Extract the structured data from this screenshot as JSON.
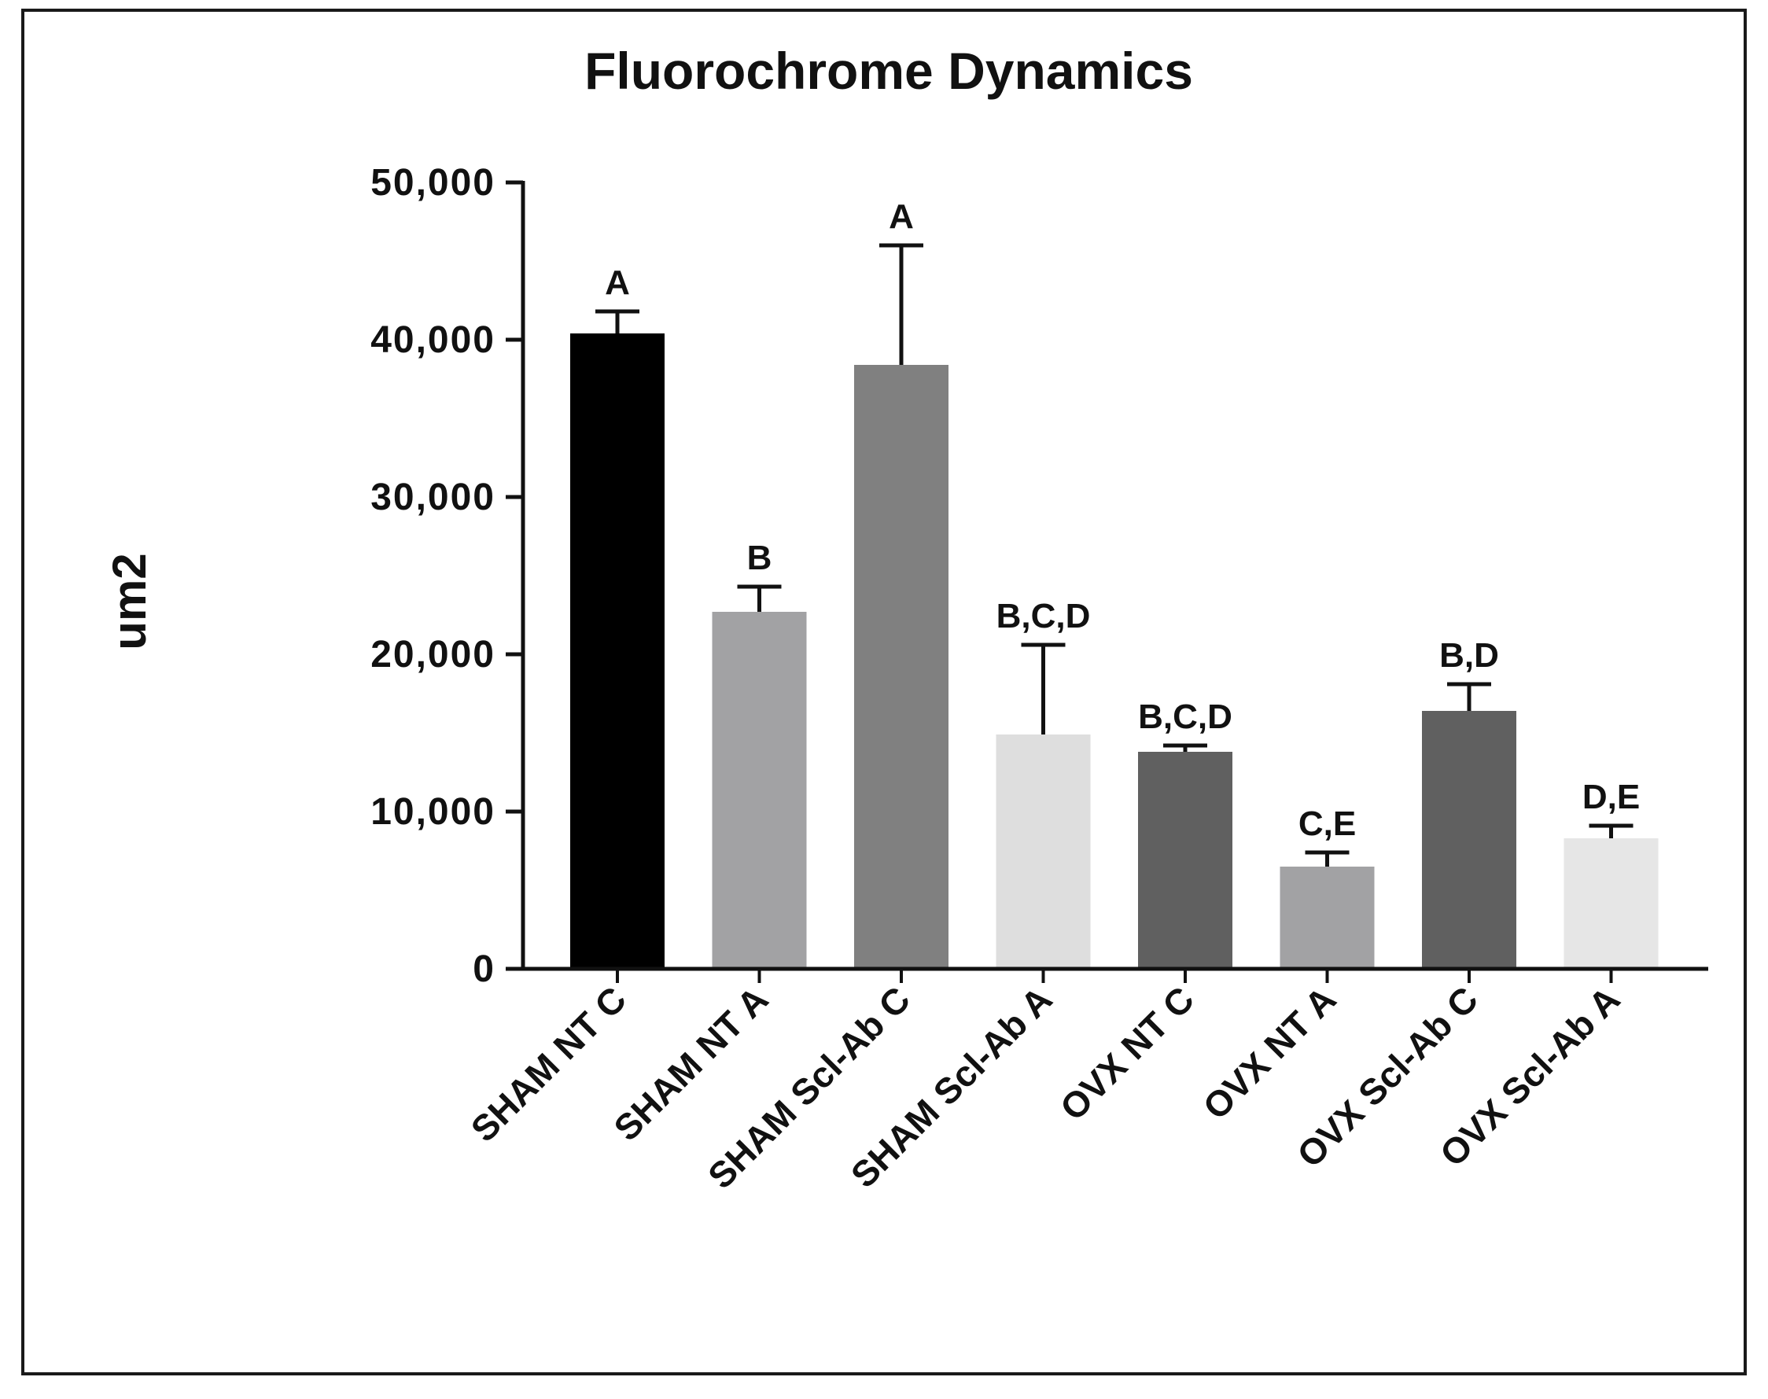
{
  "chart_data": {
    "type": "bar",
    "title": "Fluorochrome Dynamics",
    "xlabel": "",
    "ylabel": "um2",
    "ylim": [
      0,
      50000
    ],
    "yticks": [
      0,
      10000,
      20000,
      30000,
      40000,
      50000
    ],
    "ytick_labels": [
      "0",
      "10,000",
      "20,000",
      "30,000",
      "40,000",
      "50,000"
    ],
    "grid": false,
    "legend": "none",
    "categories": [
      "SHAM NT C",
      "SHAM NT A",
      "SHAM Scl-Ab C",
      "SHAM Scl-Ab A",
      "OVX NT C",
      "OVX NT A",
      "OVX Scl-Ab C",
      "OVX Scl-Ab A"
    ],
    "values": [
      40400,
      22700,
      38400,
      14900,
      13800,
      6500,
      16400,
      8300
    ],
    "error_upper": [
      41800,
      24300,
      46000,
      20600,
      14200,
      7400,
      18100,
      9100
    ],
    "annotations": [
      "A",
      "B",
      "A",
      "B,C,D",
      "B,C,D",
      "C,E",
      "B,D",
      "D,E"
    ],
    "bar_colors": [
      "#000000",
      "#a2a2a4",
      "#808080",
      "#dedede",
      "#606060",
      "#a2a2a4",
      "#606060",
      "#e6e6e6"
    ]
  }
}
